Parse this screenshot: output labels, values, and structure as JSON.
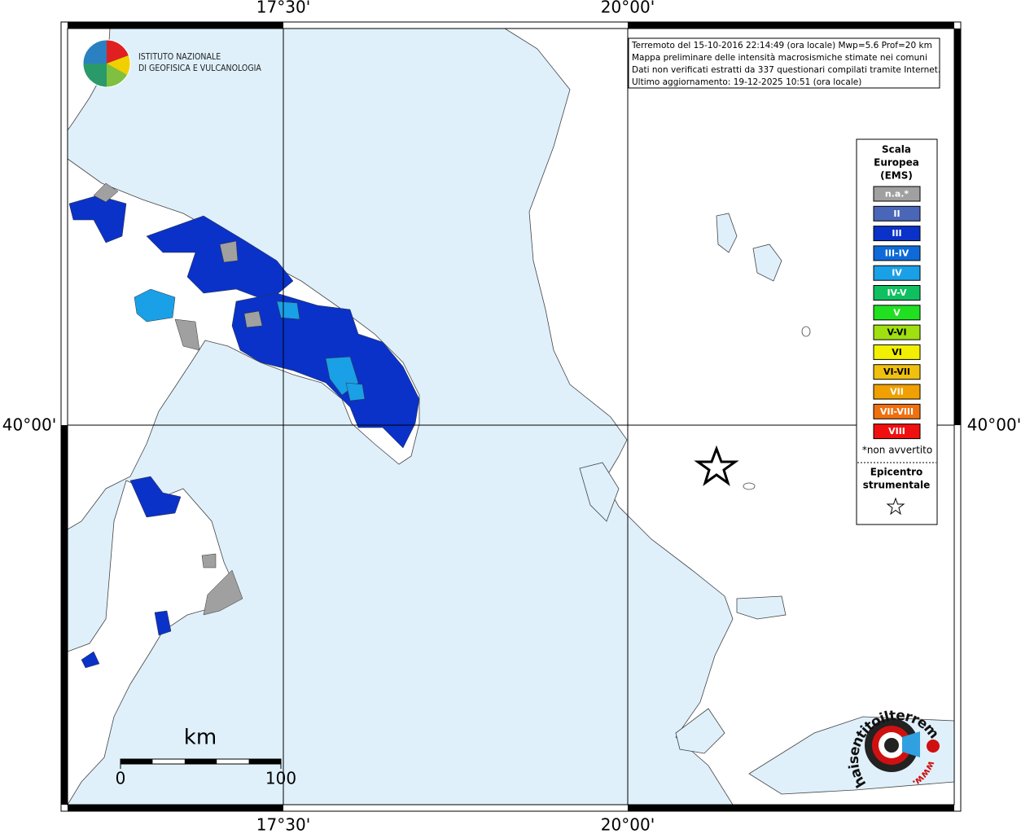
{
  "graticule": {
    "top": [
      "17°30'",
      "20°00'"
    ],
    "bottom": [
      "17°30'",
      "20°00'"
    ],
    "left": "40°00'",
    "right": "40°00'"
  },
  "institute": {
    "line1": "ISTITUTO NAZIONALE",
    "line2": "DI GEOFISICA E VULCANOLOGIA"
  },
  "info": [
    "Terremoto del 15-10-2016 22:14:49 (ora locale) Mwp=5.6 Prof=20 km",
    "Mappa preliminare delle intensità macrosismiche stimate nei comuni",
    "Dati non verificati estratti da 337 questionari compilati tramite Internet.",
    "Ultimo aggiornamento: 19-12-2025 10:51 (ora locale)"
  ],
  "legend": {
    "title": [
      "Scala",
      "Europea",
      "(EMS)"
    ],
    "classes": [
      {
        "label": "n.a.*",
        "color": "#a0a0a0"
      },
      {
        "label": "II",
        "color": "#4a66b8"
      },
      {
        "label": "III",
        "color": "#0a32c8"
      },
      {
        "label": "III-IV",
        "color": "#0e6ad8"
      },
      {
        "label": "IV",
        "color": "#1aa0e6"
      },
      {
        "label": "IV-V",
        "color": "#10c060"
      },
      {
        "label": "V",
        "color": "#20e020"
      },
      {
        "label": "V-VI",
        "color": "#a0e010"
      },
      {
        "label": "VI",
        "color": "#f0f000"
      },
      {
        "label": "VI-VII",
        "color": "#f0c010"
      },
      {
        "label": "VII",
        "color": "#f0a000"
      },
      {
        "label": "VII-VIII",
        "color": "#f07010"
      },
      {
        "label": "VIII",
        "color": "#f01010"
      }
    ],
    "note": "*non avvertito",
    "epicenter": [
      "Epicentro",
      "strumentale"
    ]
  },
  "scalebar": {
    "unit": "km",
    "start": "0",
    "end": "100"
  },
  "badge": {
    "site": "haisentitoilterremoto.it",
    "prefix": "www."
  }
}
